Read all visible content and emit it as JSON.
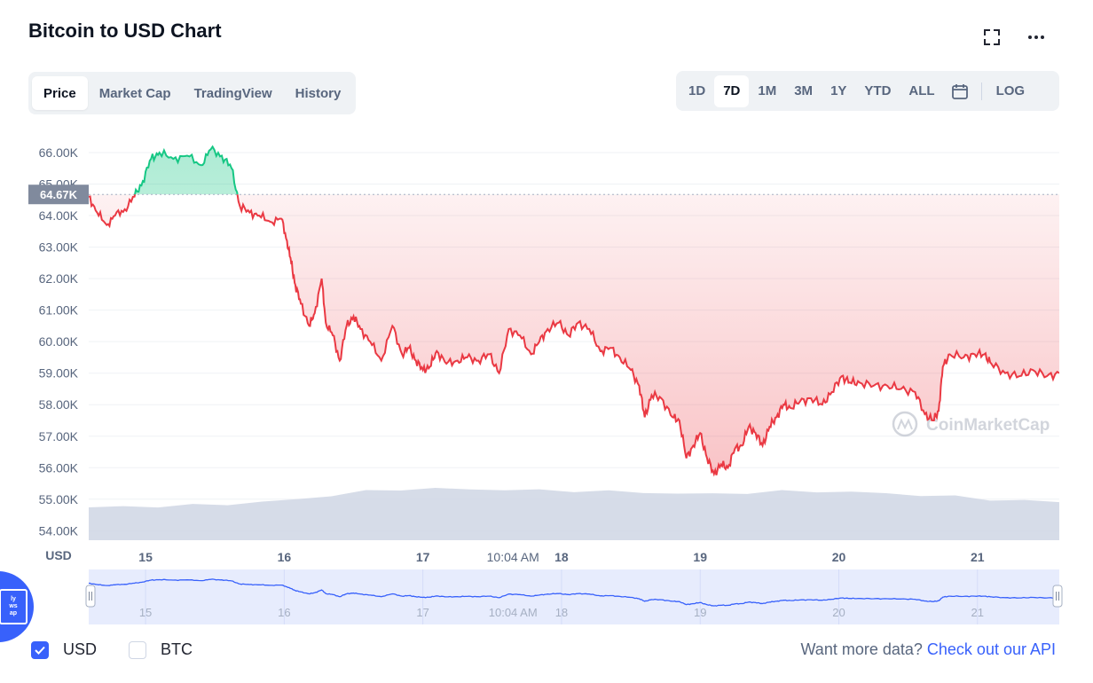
{
  "header": {
    "title": "Bitcoin to USD Chart"
  },
  "tabs": [
    {
      "label": "Price",
      "active": true
    },
    {
      "label": "Market Cap",
      "active": false
    },
    {
      "label": "TradingView",
      "active": false
    },
    {
      "label": "History",
      "active": false
    }
  ],
  "ranges": [
    {
      "label": "1D",
      "active": false
    },
    {
      "label": "7D",
      "active": true
    },
    {
      "label": "1M",
      "active": false
    },
    {
      "label": "3M",
      "active": false
    },
    {
      "label": "1Y",
      "active": false
    },
    {
      "label": "YTD",
      "active": false
    },
    {
      "label": "ALL",
      "active": false
    }
  ],
  "log_label": "LOG",
  "watermark": "CoinMarketCap",
  "legend": [
    {
      "label": "USD",
      "checked": true
    },
    {
      "label": "BTC",
      "checked": false
    }
  ],
  "api": {
    "prefix": "Want more data?",
    "link": "Check out our API"
  },
  "badge_lines": [
    "ly",
    "ws",
    "ap"
  ],
  "colors": {
    "up": "#16c784",
    "down": "#ea3943",
    "volume": "#cfd6e4",
    "accent": "#3861fb"
  },
  "chart_data": {
    "type": "line",
    "title": "Bitcoin to USD Chart",
    "ylabel": "USD",
    "ylim": [
      53700,
      66900
    ],
    "yticks": [
      54000,
      55000,
      56000,
      57000,
      58000,
      59000,
      60000,
      61000,
      62000,
      63000,
      64000,
      65000,
      66000
    ],
    "ytick_labels": [
      "54.00K",
      "55.00K",
      "56.00K",
      "57.00K",
      "58.00K",
      "59.00K",
      "60.00K",
      "61.00K",
      "62.00K",
      "63.00K",
      "64.00K",
      "65.00K",
      "66.00K"
    ],
    "xlim": [
      14.59,
      21.59
    ],
    "xticks": [
      {
        "label": "15",
        "x": 15
      },
      {
        "label": "16",
        "x": 16
      },
      {
        "label": "17",
        "x": 17
      },
      {
        "label": "10:04 AM",
        "x": 17.65
      },
      {
        "label": "18",
        "x": 18
      },
      {
        "label": "19",
        "x": 19
      },
      {
        "label": "20",
        "x": 20
      },
      {
        "label": "21",
        "x": 21
      }
    ],
    "reference_price": 64670,
    "reference_label": "64.67K",
    "grid": true,
    "series": [
      {
        "x": [
          14.59,
          14.65,
          14.72,
          14.78,
          14.85,
          14.92,
          14.98,
          15.04,
          15.1,
          15.2,
          15.3,
          15.4,
          15.47,
          15.55,
          15.62,
          15.68,
          15.75,
          15.82,
          15.9,
          15.98,
          16.02,
          16.05,
          16.08,
          16.12,
          16.18,
          16.22,
          16.27,
          16.3,
          16.35,
          16.4,
          16.45,
          16.5,
          16.55,
          16.62,
          16.7,
          16.78,
          16.85,
          16.9,
          16.95,
          17.0,
          17.05,
          17.1,
          17.17,
          17.25,
          17.32,
          17.4,
          17.48,
          17.55,
          17.62,
          17.7,
          17.78,
          17.84,
          17.9,
          17.98,
          18.05,
          18.12,
          18.2,
          18.28,
          18.35,
          18.42,
          18.5,
          18.56,
          18.6,
          18.65,
          18.72,
          18.8,
          18.85,
          18.9,
          18.95,
          19.0,
          19.05,
          19.1,
          19.15,
          19.2,
          19.25,
          19.3,
          19.35,
          19.4,
          19.45,
          19.5,
          19.55,
          19.6,
          19.65,
          19.72,
          19.8,
          19.88,
          19.95,
          20.02,
          20.08,
          20.15,
          20.25,
          20.35,
          20.45,
          20.55,
          20.62,
          20.68,
          20.72,
          20.75,
          20.8,
          20.9,
          20.98,
          21.05,
          21.1,
          21.2,
          21.3,
          21.4,
          21.5,
          21.59
        ],
        "y": [
          64600,
          64100,
          63700,
          64000,
          64200,
          64600,
          65100,
          65800,
          66000,
          65800,
          65900,
          65600,
          66100,
          65900,
          65500,
          64300,
          64100,
          64000,
          63800,
          63900,
          63200,
          62500,
          61800,
          61200,
          60500,
          60900,
          62000,
          60600,
          60200,
          59400,
          60500,
          60800,
          60400,
          60000,
          59400,
          60500,
          59600,
          59800,
          59400,
          59100,
          59200,
          59700,
          59300,
          59400,
          59500,
          59400,
          59600,
          59000,
          60400,
          60200,
          59600,
          60000,
          60400,
          60600,
          60200,
          60600,
          60400,
          59700,
          59800,
          59500,
          59100,
          58600,
          57600,
          58300,
          58200,
          57600,
          57500,
          56300,
          56700,
          57100,
          56300,
          55800,
          56100,
          56000,
          56600,
          56700,
          57300,
          57100,
          56700,
          57300,
          57600,
          58000,
          57900,
          58100,
          58200,
          58000,
          58400,
          58900,
          58700,
          58700,
          58600,
          58600,
          58500,
          58400,
          57700,
          57500,
          57800,
          59200,
          59600,
          59500,
          59600,
          59600,
          59300,
          59000,
          58900,
          59100,
          58900,
          59000
        ]
      }
    ]
  }
}
